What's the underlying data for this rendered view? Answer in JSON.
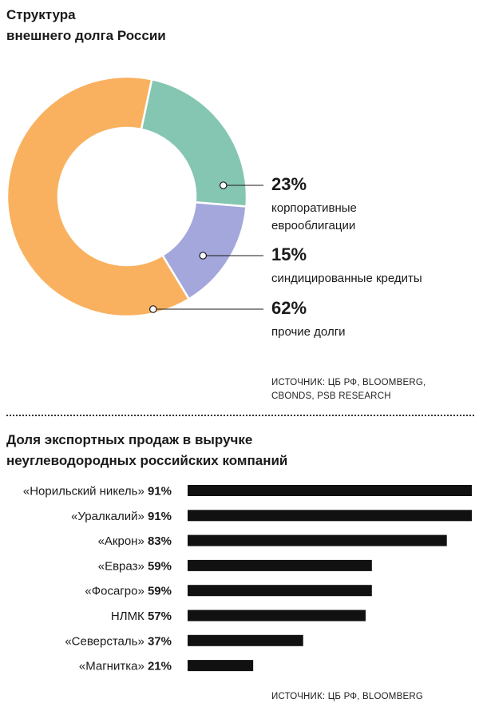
{
  "chart_data": [
    {
      "type": "pie",
      "variant": "donut",
      "title_lines": [
        "Структура",
        "внешнего долга России"
      ],
      "slices": [
        {
          "value": 23,
          "label": "23%",
          "name_lines": [
            "корпоративные",
            "еврооблигации"
          ],
          "color": "#85c6b3"
        },
        {
          "value": 15,
          "label": "15%",
          "name_lines": [
            "синдицированные кредиты"
          ],
          "color": "#a3a7db"
        },
        {
          "value": 62,
          "label": "62%",
          "name_lines": [
            "прочие долги"
          ],
          "color": "#f9b15f"
        }
      ],
      "source_lines": [
        "ИСТОЧНИК: ЦБ РФ, BLOOMBERG,",
        "CBONDS, PSB RESEARCH"
      ]
    },
    {
      "type": "bar",
      "orientation": "horizontal",
      "title_lines": [
        "Доля экспортных продаж в выручке",
        "неуглеводородных российских компаний"
      ],
      "bars": [
        {
          "name": "«Норильский никель»",
          "value": 91,
          "value_label": "91%"
        },
        {
          "name": "«Уралкалий»",
          "value": 91,
          "value_label": "91%"
        },
        {
          "name": "«Акрон»",
          "value": 83,
          "value_label": "83%"
        },
        {
          "name": "«Евраз»",
          "value": 59,
          "value_label": "59%"
        },
        {
          "name": "«Фосагро»",
          "value": 59,
          "value_label": "59%"
        },
        {
          "name": "НЛМК",
          "value": 57,
          "value_label": "57%"
        },
        {
          "name": "«Северсталь»",
          "value": 37,
          "value_label": "37%"
        },
        {
          "name": "«Магнитка»",
          "value": 21,
          "value_label": "21%"
        }
      ],
      "bar_color": "#111111",
      "source_lines": [
        "ИСТОЧНИК: ЦБ РФ, BLOOMBERG"
      ]
    }
  ]
}
